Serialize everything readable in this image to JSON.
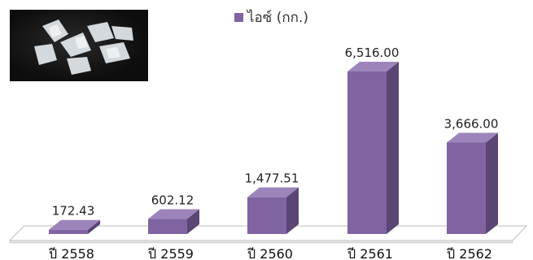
{
  "legend": {
    "label": "ไอซ์ (กก.)"
  },
  "colors": {
    "bar_front": "#8064a2",
    "bar_side": "#5a4575",
    "bar_top": "#9d85bb",
    "floor": "#ffffff",
    "floor_edge": "#bdbdbd"
  },
  "chart_data": {
    "type": "bar",
    "categories": [
      "ปี 2558",
      "ปี 2559",
      "ปี 2560",
      "ปี 2561",
      "ปี 2562"
    ],
    "series": [
      {
        "name": "ไอซ์ (กก.)",
        "values": [
          172.43,
          602.12,
          1477.51,
          6516.0,
          3666.0
        ]
      }
    ],
    "data_labels": [
      "172.43",
      "602.12",
      "1,477.51",
      "6,516.00",
      "3,666.00"
    ],
    "ylim": [
      0,
      6516
    ],
    "style": "3d-column",
    "legend_position": "top",
    "grid": false
  }
}
